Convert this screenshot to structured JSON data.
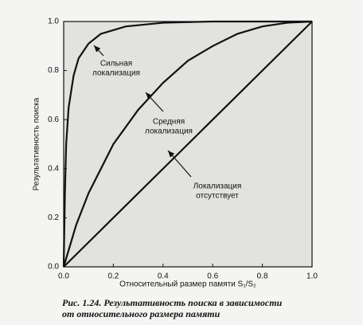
{
  "chart_data": {
    "type": "line",
    "xlabel": "Относительный размер памяти S₁/S₂",
    "ylabel": "Результативность поиска",
    "xlim": [
      0,
      1
    ],
    "ylim": [
      0,
      1
    ],
    "xticks": [
      {
        "value": 0,
        "label": "0.0"
      },
      0.2,
      0.4,
      0.6,
      0.8,
      {
        "value": 1,
        "label": "1.0"
      }
    ],
    "yticks": [
      {
        "value": 0,
        "label": "0.0"
      },
      0.2,
      0.4,
      0.6,
      0.8,
      {
        "value": 1,
        "label": "1.0"
      }
    ],
    "series": [
      {
        "color": "#111111",
        "x": [
          0,
          0.005,
          0.01,
          0.02,
          0.04,
          0.06,
          0.1,
          0.15,
          0.25,
          0.4,
          0.6,
          1
        ],
        "values": [
          0,
          0.3,
          0.5,
          0.65,
          0.78,
          0.85,
          0.91,
          0.95,
          0.98,
          0.995,
          1,
          1
        ]
      },
      {
        "color": "#111111",
        "x": [
          0,
          0.05,
          0.1,
          0.2,
          0.3,
          0.4,
          0.5,
          0.6,
          0.7,
          0.8,
          0.9,
          1
        ],
        "values": [
          0,
          0.17,
          0.3,
          0.5,
          0.64,
          0.75,
          0.84,
          0.9,
          0.95,
          0.98,
          0.995,
          1
        ]
      },
      {
        "color": "#111111",
        "x": [
          0,
          1
        ],
        "values": [
          0,
          1
        ]
      }
    ],
    "annotations": [
      {
        "lines": [
          "Сильная",
          "локализация"
        ]
      },
      {
        "lines": [
          "Средняя",
          "локализация"
        ]
      },
      {
        "lines": [
          "Локализация",
          "отсутствует"
        ]
      }
    ],
    "caption": [
      "Рис. 1.24. Результативность поиска в зависимости",
      "от относительного размера памяти"
    ]
  }
}
